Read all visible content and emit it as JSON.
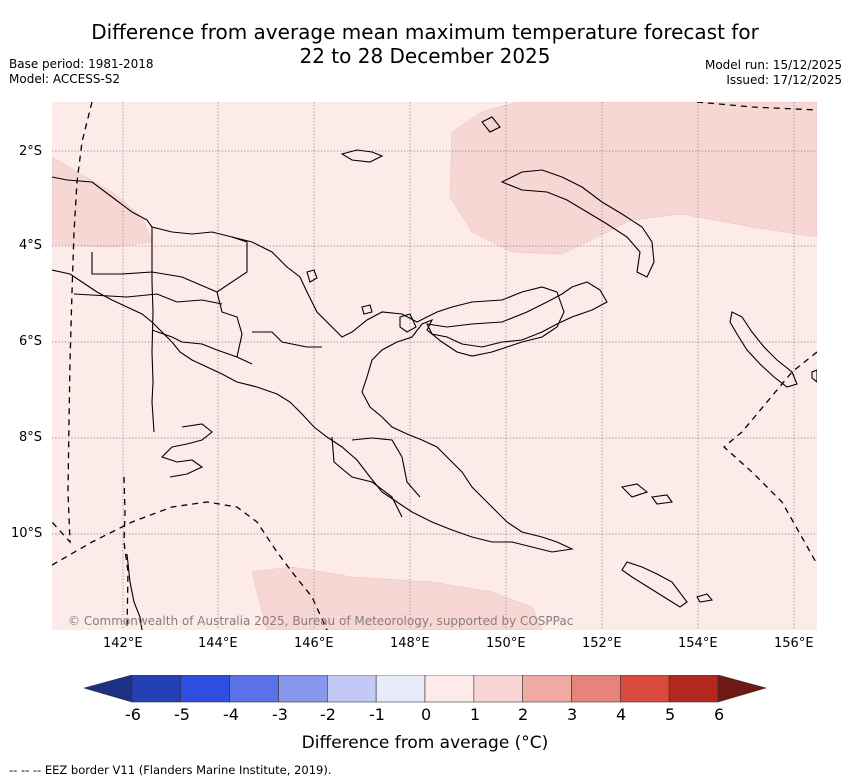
{
  "title_line1": "Difference from average mean maximum temperature forecast for",
  "title_line2": "22 to 28 December 2025",
  "base_period": "Base period: 1981-2018",
  "model": "Model: ACCESS-S2",
  "model_run": "Model run: 15/12/2025",
  "issued": "Issued: 17/12/2025",
  "lat_labels": [
    "2°S",
    "4°S",
    "6°S",
    "8°S",
    "10°S"
  ],
  "lon_labels": [
    "142°E",
    "144°E",
    "146°E",
    "148°E",
    "150°E",
    "152°E",
    "154°E",
    "156°E"
  ],
  "copyright": "© Commonwealth of Australia 2025, Bureau of Meteorology, supported by COSPPac",
  "colorbar": {
    "ticks": [
      "-6",
      "-5",
      "-4",
      "-3",
      "-2",
      "-1",
      "0",
      "1",
      "2",
      "3",
      "4",
      "5",
      "6"
    ],
    "colors": [
      "#1c3185",
      "#2340b5",
      "#2f4fe0",
      "#5a72e6",
      "#8797ec",
      "#c2c9f4",
      "#e8ebfa",
      "#fdebe9",
      "#f6d5d2",
      "#efaaa4",
      "#e6847c",
      "#da4a3c",
      "#b2281f",
      "#6e1a14"
    ],
    "label": "Difference from average (°C)"
  },
  "map_fill": {
    "base": "#fcebe9",
    "light_positive": "#f6d7d4"
  },
  "footnote": "-- -- -- EEZ border V11 (Flanders Marine Institute, 2019)."
}
